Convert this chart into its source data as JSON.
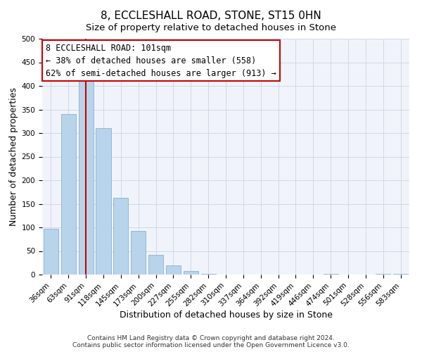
{
  "title": "8, ECCLESHALL ROAD, STONE, ST15 0HN",
  "subtitle": "Size of property relative to detached houses in Stone",
  "xlabel": "Distribution of detached houses by size in Stone",
  "ylabel": "Number of detached properties",
  "bar_labels": [
    "36sqm",
    "63sqm",
    "91sqm",
    "118sqm",
    "145sqm",
    "173sqm",
    "200sqm",
    "227sqm",
    "255sqm",
    "282sqm",
    "310sqm",
    "337sqm",
    "364sqm",
    "392sqm",
    "419sqm",
    "446sqm",
    "474sqm",
    "501sqm",
    "528sqm",
    "556sqm",
    "583sqm"
  ],
  "bar_values": [
    97,
    341,
    413,
    311,
    163,
    93,
    42,
    19,
    8,
    2,
    0,
    0,
    0,
    0,
    0,
    0,
    2,
    0,
    0,
    2,
    2
  ],
  "bar_color": "#b8d4ea",
  "bar_edge_color": "#8ab0d0",
  "vline_x": 2,
  "vline_color": "#cc0000",
  "annotation_title": "8 ECCLESHALL ROAD: 101sqm",
  "annotation_line1": "← 38% of detached houses are smaller (558)",
  "annotation_line2": "62% of semi-detached houses are larger (913) →",
  "annotation_box_color": "#ffffff",
  "annotation_box_edge": "#cc0000",
  "ylim": [
    0,
    500
  ],
  "yticks": [
    0,
    50,
    100,
    150,
    200,
    250,
    300,
    350,
    400,
    450,
    500
  ],
  "footer1": "Contains HM Land Registry data © Crown copyright and database right 2024.",
  "footer2": "Contains public sector information licensed under the Open Government Licence v3.0.",
  "title_fontsize": 11,
  "subtitle_fontsize": 9.5,
  "axis_label_fontsize": 9,
  "tick_fontsize": 7.5,
  "annotation_fontsize": 8.5,
  "footer_fontsize": 6.5,
  "grid_color": "#d0d8e8",
  "background_color": "#f0f4fa"
}
